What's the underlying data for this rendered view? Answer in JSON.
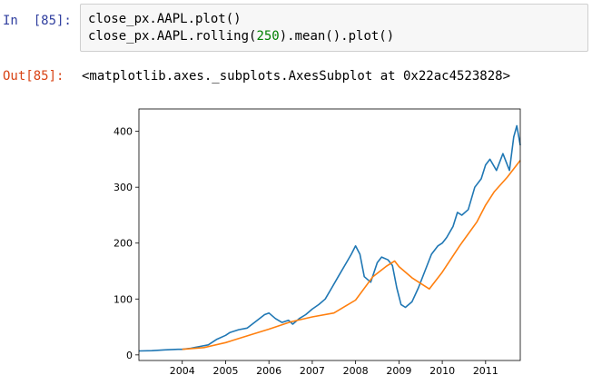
{
  "input_prompt": "In  [85]:",
  "code": {
    "line1": "close_px.AAPL.plot()",
    "line2_a": "close_px.AAPL.rolling(",
    "line2_num": "250",
    "line2_b": ").mean().plot()"
  },
  "output_prompt": "Out[85]:",
  "output_text": "<matplotlib.axes._subplots.AxesSubplot at 0x22ac4523828>",
  "colors": {
    "series1": "#1f77b4",
    "series2": "#ff7f0e",
    "prompt_in": "#303f9f",
    "prompt_out": "#d84315"
  },
  "chart_data": {
    "type": "line",
    "xlim": [
      2003.0,
      2011.8
    ],
    "ylim": [
      -10,
      440
    ],
    "xticks": [
      "2004",
      "2005",
      "2006",
      "2007",
      "2008",
      "2009",
      "2010",
      "2011"
    ],
    "yticks": [
      0,
      100,
      200,
      300,
      400
    ],
    "grid": false,
    "legend": "none",
    "series": [
      {
        "x": [
          2003.0,
          2003.3,
          2003.6,
          2003.9,
          2004.0,
          2004.2,
          2004.4,
          2004.6,
          2004.8,
          2005.0,
          2005.1,
          2005.3,
          2005.5,
          2005.7,
          2005.9,
          2006.0,
          2006.15,
          2006.3,
          2006.45,
          2006.55,
          2006.7,
          2006.85,
          2007.0,
          2007.15,
          2007.3,
          2007.45,
          2007.6,
          2007.75,
          2007.9,
          2008.0,
          2008.1,
          2008.2,
          2008.35,
          2008.5,
          2008.6,
          2008.75,
          2008.85,
          2008.95,
          2009.05,
          2009.15,
          2009.3,
          2009.45,
          2009.6,
          2009.75,
          2009.9,
          2010.0,
          2010.1,
          2010.25,
          2010.35,
          2010.45,
          2010.6,
          2010.75,
          2010.9,
          2011.0,
          2011.1,
          2011.25,
          2011.4,
          2011.55,
          2011.65,
          2011.72,
          2011.8
        ],
        "values": [
          7,
          7.5,
          9,
          10,
          10,
          12,
          15,
          18,
          28,
          35,
          40,
          45,
          48,
          60,
          72,
          75,
          65,
          58,
          62,
          55,
          65,
          72,
          82,
          90,
          100,
          120,
          140,
          160,
          180,
          195,
          180,
          140,
          130,
          165,
          175,
          170,
          160,
          120,
          90,
          85,
          95,
          120,
          150,
          180,
          195,
          200,
          210,
          230,
          255,
          250,
          260,
          300,
          315,
          340,
          350,
          330,
          360,
          330,
          390,
          410,
          375
        ]
      },
      {
        "x": [
          2004.0,
          2004.5,
          2005.0,
          2005.5,
          2006.0,
          2006.5,
          2007.0,
          2007.5,
          2008.0,
          2008.4,
          2008.7,
          2008.9,
          2009.0,
          2009.3,
          2009.5,
          2009.7,
          2010.0,
          2010.4,
          2010.8,
          2011.0,
          2011.2,
          2011.5,
          2011.8
        ],
        "values": [
          10,
          13,
          22,
          34,
          46,
          59,
          68,
          75,
          98,
          140,
          158,
          168,
          158,
          138,
          128,
          118,
          148,
          195,
          238,
          268,
          292,
          318,
          348
        ]
      }
    ]
  }
}
